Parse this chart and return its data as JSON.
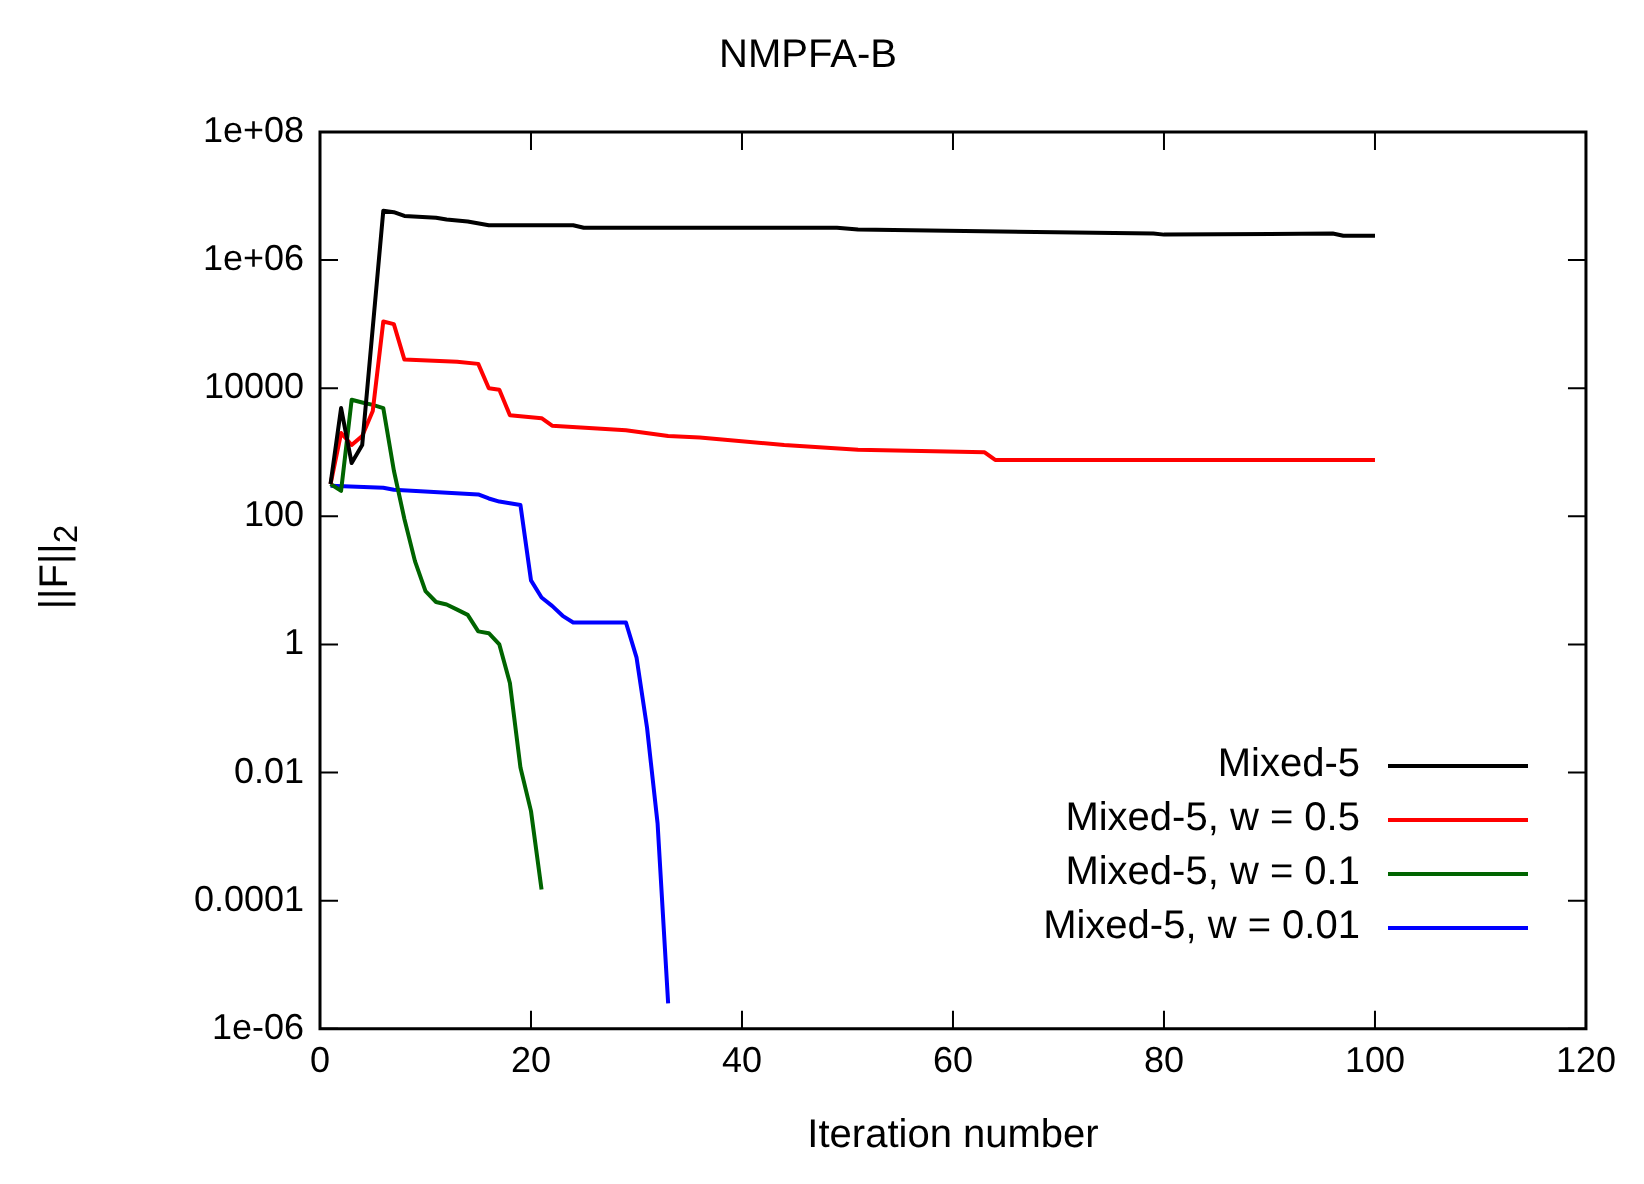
{
  "chart_data": {
    "type": "line",
    "title": "NMPFA-B",
    "xlabel": "Iteration number",
    "ylabel": "||F||$_{2}$",
    "log": "y",
    "grid": false,
    "legend": "bottom right",
    "marker": "none",
    "line_style": "solid",
    "xlim": [
      0,
      120
    ],
    "xticks": [
      0,
      20,
      40,
      60,
      80,
      100,
      120
    ],
    "ylim": [
      1e-06,
      100000000.0
    ],
    "yticks": [
      {
        "value": 100000000.0,
        "label": "1e+08"
      },
      {
        "value": 1000000.0,
        "label": "1e+06"
      },
      10000,
      100,
      1,
      0.01,
      0.0001,
      {
        "value": 1e-06,
        "label": "1e-06"
      }
    ],
    "series": [
      {
        "name": "Mixed-5",
        "color": "#000000",
        "x": [
          1,
          2,
          3,
          4,
          6,
          7,
          8,
          11,
          12,
          14,
          16,
          24,
          25,
          36,
          49,
          51,
          79,
          80,
          96,
          97,
          100
        ],
        "values": [
          320,
          4900,
          680,
          1300,
          5900000,
          5600000,
          4900000,
          4600000,
          4300000,
          4000000,
          3500000,
          3500000,
          3200000,
          3200000,
          3200000,
          3000000,
          2600000,
          2500000,
          2600000,
          2400000,
          2400000
        ]
      },
      {
        "name": "Mixed-5, w = 0.5",
        "color": "#ff0000",
        "x": [
          1,
          2,
          3,
          4,
          5,
          6,
          7,
          8,
          13,
          15,
          16,
          17,
          18,
          21,
          22,
          29,
          33,
          36,
          44,
          51,
          63,
          64,
          100
        ],
        "values": [
          320,
          2000,
          1300,
          1800,
          4400,
          110000,
          100000,
          28000,
          26000,
          24000,
          10000,
          9500,
          3800,
          3400,
          2600,
          2200,
          1800,
          1700,
          1300,
          1100,
          1000,
          760,
          760
        ]
      },
      {
        "name": "Mixed-5, w = 0.1",
        "color": "#006400",
        "x": [
          1,
          2,
          3,
          4,
          5,
          6,
          7,
          8,
          9,
          10,
          11,
          12,
          13,
          14,
          15,
          16,
          17,
          18,
          19,
          20,
          21
        ],
        "values": [
          320,
          250,
          6600,
          6000,
          5500,
          4900,
          520,
          91,
          20,
          6.8,
          4.6,
          4.2,
          3.5,
          2.9,
          1.6,
          1.5,
          1.0,
          0.25,
          0.012,
          0.0025,
          0.00015
        ]
      },
      {
        "name": "Mixed-5, w = 0.01",
        "color": "#0000ff",
        "x": [
          1,
          6,
          7,
          15,
          16,
          17,
          18,
          19,
          20,
          21,
          22,
          23,
          24,
          29,
          30,
          31,
          32,
          33
        ],
        "values": [
          300,
          280,
          260,
          220,
          190,
          170,
          160,
          150,
          10,
          5.4,
          4,
          2.8,
          2.2,
          2.2,
          0.63,
          0.05,
          0.0016,
          2.5e-06
        ]
      }
    ]
  }
}
